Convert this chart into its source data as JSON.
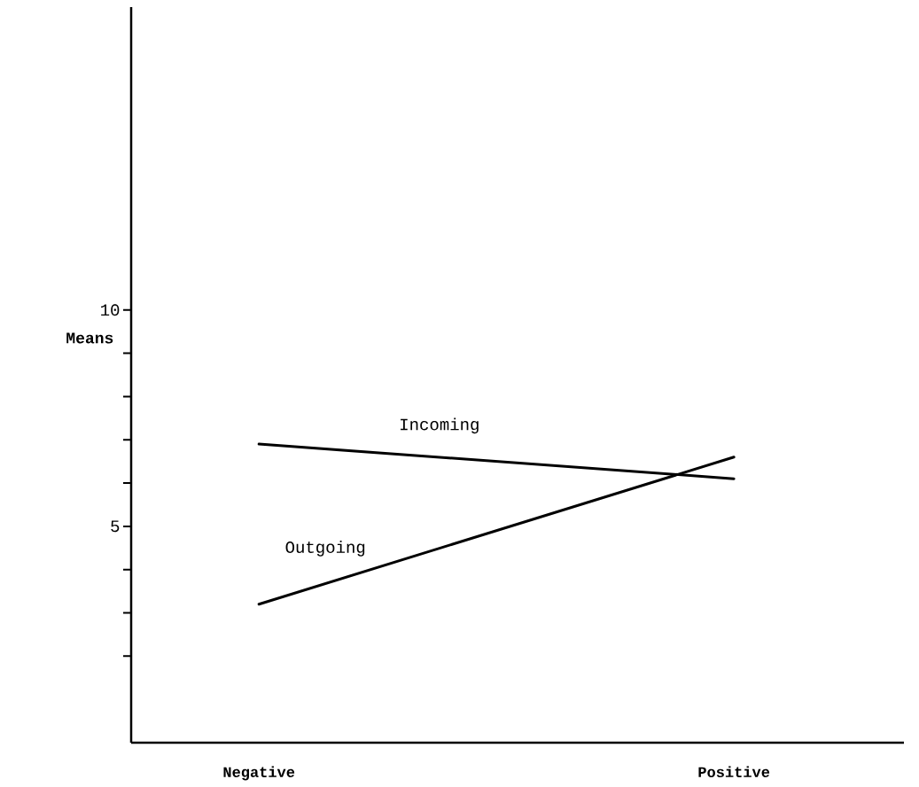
{
  "chart_data": {
    "type": "line",
    "ylabel": "Means",
    "categories": [
      "Negative",
      "Positive"
    ],
    "series": [
      {
        "name": "Incoming",
        "color": "#000000",
        "values": [
          6.9,
          6.1
        ]
      },
      {
        "name": "Outgoing",
        "color": "#000000",
        "values": [
          3.2,
          6.6
        ]
      }
    ],
    "ylim": [
      0,
      17
    ],
    "yticks": [
      {
        "value": 2,
        "label": null
      },
      {
        "value": 3,
        "label": null
      },
      {
        "value": 4,
        "label": null
      },
      5,
      {
        "value": 6,
        "label": null
      },
      {
        "value": 7,
        "label": null
      },
      {
        "value": 8,
        "label": null
      },
      {
        "value": 9,
        "label": null
      },
      10
    ],
    "line_style": "solid"
  }
}
